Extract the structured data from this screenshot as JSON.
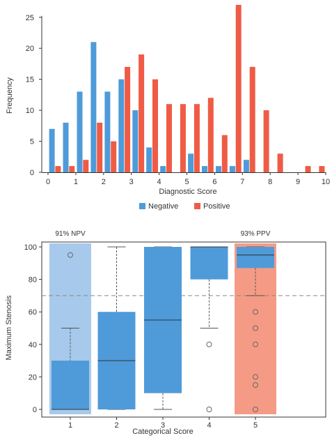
{
  "colors": {
    "negative": "#4f9bd9",
    "positive": "#ef5b45",
    "box": "#4f9bd9",
    "band_npv": "#a7c9eb",
    "band_ppv": "#f59b85",
    "axis": "#333333"
  },
  "chart_data": [
    {
      "type": "bar",
      "title": "",
      "xlabel": "Diagnostic Score",
      "ylabel": "Frequency",
      "xlim": [
        0,
        10
      ],
      "ylim": [
        0,
        27
      ],
      "x_ticks": [
        "0",
        "1",
        "2",
        "3",
        "4",
        "5",
        "6",
        "7",
        "8",
        "9",
        "10"
      ],
      "y_ticks": [
        "0",
        "5",
        "10",
        "15",
        "20",
        "25"
      ],
      "bin_width": 0.5,
      "bin_starts": [
        0,
        0.5,
        1,
        1.5,
        2,
        2.5,
        3,
        3.5,
        4,
        4.5,
        5,
        5.5,
        6,
        6.5,
        7,
        7.5,
        8,
        8.5,
        9,
        9.5
      ],
      "legend_position": "bottom",
      "series": [
        {
          "name": "Negative",
          "values": [
            7,
            8,
            13,
            21,
            13,
            15,
            10,
            4,
            1,
            0,
            3,
            1,
            1,
            1,
            2,
            0,
            0,
            0,
            0,
            0
          ]
        },
        {
          "name": "Positive",
          "values": [
            1,
            1,
            2,
            8,
            5,
            17,
            19,
            15,
            11,
            11,
            11,
            12,
            6,
            27,
            17,
            10,
            3,
            0,
            1,
            1
          ]
        }
      ]
    },
    {
      "type": "box",
      "title": "",
      "xlabel": "Categorical Score",
      "ylabel": "Maximum Stenosis",
      "categories": [
        "1",
        "2",
        "3",
        "4",
        "5"
      ],
      "ylim": [
        -2,
        102
      ],
      "y_ticks": [
        "0",
        "20",
        "40",
        "60",
        "80",
        "100"
      ],
      "reference_line": 70,
      "annotations": [
        "91% NPV",
        "93% PPV"
      ],
      "boxes": [
        {
          "category": "1",
          "min": 0,
          "q1": 0,
          "median": 0,
          "q3": 30,
          "max": 50,
          "outliers": [
            95
          ]
        },
        {
          "category": "2",
          "min": 0,
          "q1": 0,
          "median": 30,
          "q3": 60,
          "max": 100,
          "outliers": []
        },
        {
          "category": "3",
          "min": 0,
          "q1": 10,
          "median": 55,
          "q3": 100,
          "max": 100,
          "outliers": []
        },
        {
          "category": "4",
          "min": 50,
          "q1": 80,
          "median": 100,
          "q3": 100,
          "max": 100,
          "outliers": [
            40,
            0
          ]
        },
        {
          "category": "5",
          "min": 70,
          "q1": 87,
          "median": 95,
          "q3": 100,
          "max": 100,
          "outliers": [
            60,
            50,
            40,
            20,
            15,
            0
          ]
        }
      ],
      "bands": [
        {
          "category": "1",
          "label": "91% NPV"
        },
        {
          "category": "5",
          "label": "93% PPV"
        }
      ]
    }
  ]
}
